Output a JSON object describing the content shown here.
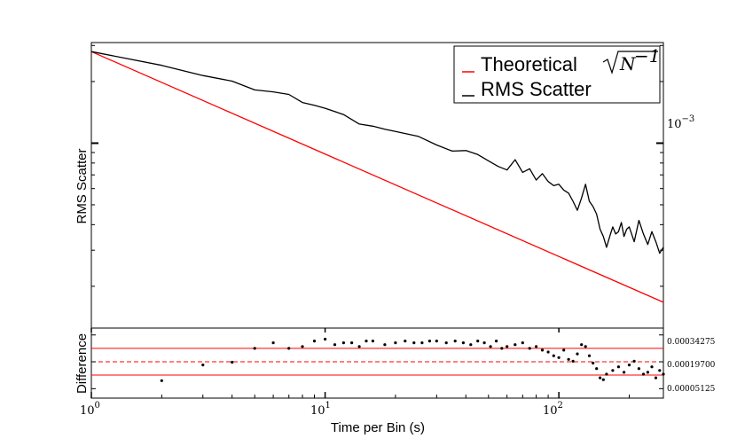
{
  "chart_data": [
    {
      "type": "line",
      "panel": "main",
      "title": "",
      "xlabel": "Time per Bin (s)",
      "ylabel": "RMS Scatter",
      "xscale": "log",
      "yscale": "log",
      "xlim": [
        1,
        280
      ],
      "ylim": [
        0.000125,
        0.0031
      ],
      "y_tick_label": {
        "mantissa": "10",
        "exponent": "−3",
        "value": 0.001
      },
      "legend": {
        "placement": "top-right",
        "entries": [
          {
            "name": "Theoretical",
            "math": "N",
            "math_exp": "−1",
            "color": "#ff0000"
          },
          {
            "name": "RMS Scatter",
            "color": "#000000"
          }
        ]
      },
      "series": [
        {
          "name": "Theoretical",
          "color": "#ff0000",
          "x": [
            1,
            280
          ],
          "y": [
            0.0028,
            0.000167
          ]
        },
        {
          "name": "RMS Scatter",
          "color": "#000000",
          "x": [
            1,
            2,
            3,
            4,
            5,
            6,
            7,
            8,
            9,
            10,
            12,
            14,
            16,
            18,
            20,
            25,
            30,
            35,
            40,
            45,
            50,
            55,
            60,
            65,
            70,
            75,
            80,
            85,
            90,
            95,
            100,
            105,
            110,
            115,
            120,
            125,
            130,
            135,
            140,
            145,
            150,
            155,
            160,
            165,
            170,
            175,
            180,
            185,
            190,
            195,
            200,
            210,
            220,
            230,
            240,
            250,
            260,
            270,
            280
          ],
          "y": [
            0.0028,
            0.0024,
            0.00214,
            0.00201,
            0.00182,
            0.00178,
            0.00173,
            0.00158,
            0.00153,
            0.00148,
            0.00138,
            0.00124,
            0.00121,
            0.00117,
            0.00114,
            0.00108,
            0.00098,
            0.000915,
            0.00092,
            0.00088,
            0.00082,
            0.00077,
            0.00074,
            0.00083,
            0.00072,
            0.00075,
            0.00066,
            0.00071,
            0.00065,
            0.00062,
            0.00063,
            0.00059,
            0.00057,
            0.00052,
            0.00047,
            0.00054,
            0.00063,
            0.00052,
            0.00049,
            0.00045,
            0.00038,
            0.00035,
            0.00031,
            0.00035,
            0.00039,
            0.00036,
            0.00037,
            0.00041,
            0.00035,
            0.00038,
            0.00039,
            0.00033,
            0.00042,
            0.00036,
            0.00032,
            0.00037,
            0.00033,
            0.00029,
            0.00031
          ]
        }
      ]
    },
    {
      "type": "scatter",
      "panel": "difference",
      "xlabel": "Time per Bin (s)",
      "ylabel": "Difference",
      "xscale": "log",
      "xlim": [
        1,
        280
      ],
      "ylim": [
        0.0,
        0.00038
      ],
      "x_tick_labels": [
        {
          "mantissa": "10",
          "exponent": "0",
          "value": 1
        },
        {
          "mantissa": "10",
          "exponent": "1",
          "value": 10
        },
        {
          "mantissa": "10",
          "exponent": "2",
          "value": 100
        }
      ],
      "right_ticks": [
        "0.00034275",
        "0.00019700",
        "0.00005125"
      ],
      "reference_lines": [
        {
          "value": 0.00027,
          "style": "solid",
          "color": "#ff0000"
        },
        {
          "value": 0.000197,
          "style": "dashed",
          "color": "#ff0000"
        },
        {
          "value": 0.000125,
          "style": "solid",
          "color": "#ff0000"
        }
      ],
      "points": {
        "x": [
          2,
          3,
          4,
          5,
          6,
          7,
          8,
          9,
          10,
          11,
          12,
          13,
          14,
          15,
          16,
          18,
          20,
          22,
          24,
          26,
          28,
          30,
          33,
          36,
          39,
          42,
          45,
          48,
          51,
          54,
          57,
          60,
          65,
          70,
          75,
          80,
          85,
          90,
          95,
          100,
          105,
          110,
          115,
          120,
          125,
          130,
          135,
          140,
          145,
          150,
          155,
          160,
          170,
          180,
          190,
          200,
          210,
          220,
          230,
          240,
          250,
          260,
          270,
          280
        ],
        "y": [
          9.5e-05,
          0.00018,
          0.000195,
          0.00027,
          0.0003,
          0.00027,
          0.00028,
          0.00031,
          0.00032,
          0.00029,
          0.0003,
          0.0003,
          0.00028,
          0.00031,
          0.00031,
          0.00029,
          0.0003,
          0.00031,
          0.0003,
          0.0003,
          0.00031,
          0.00031,
          0.0003,
          0.00031,
          0.0003,
          0.00029,
          0.00031,
          0.0003,
          0.00028,
          0.00031,
          0.00027,
          0.00028,
          0.00029,
          0.0003,
          0.00027,
          0.00028,
          0.00026,
          0.00025,
          0.00023,
          0.00022,
          0.00026,
          0.00021,
          0.0002,
          0.00024,
          0.00029,
          0.00028,
          0.00023,
          0.00019,
          0.00016,
          0.00011,
          0.0001,
          0.00013,
          0.00015,
          0.00017,
          0.00014,
          0.00018,
          0.0002,
          0.00016,
          0.00013,
          0.00014,
          0.00017,
          0.00011,
          0.00015,
          0.00013
        ]
      }
    }
  ]
}
